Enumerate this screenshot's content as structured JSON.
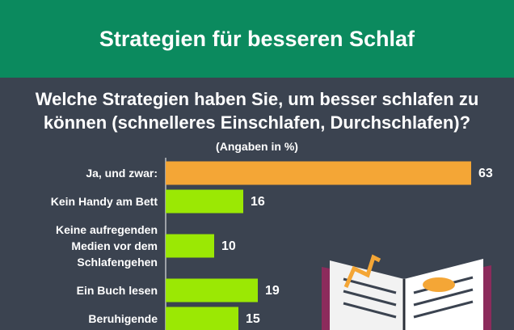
{
  "header": {
    "title": "Strategien für besseren Schlaf"
  },
  "chart_data": {
    "type": "bar",
    "orientation": "horizontal",
    "title": "Welche Strategien haben Sie, um besser schlafen zu\nkönnen (schnelleres Einschlafen, Durchschlafen)?",
    "subtitle": "(Angaben in %)",
    "categories": [
      "Ja, und zwar:",
      "Kein Handy am Bett",
      "Keine aufregenden\nMedien vor dem\nSchlafengehen",
      "Ein Buch lesen",
      "Beruhigende"
    ],
    "values": [
      63,
      16,
      10,
      19,
      15
    ],
    "colors": [
      "#f4a636",
      "#9be804",
      "#9be804",
      "#9be804",
      "#9be804"
    ]
  }
}
